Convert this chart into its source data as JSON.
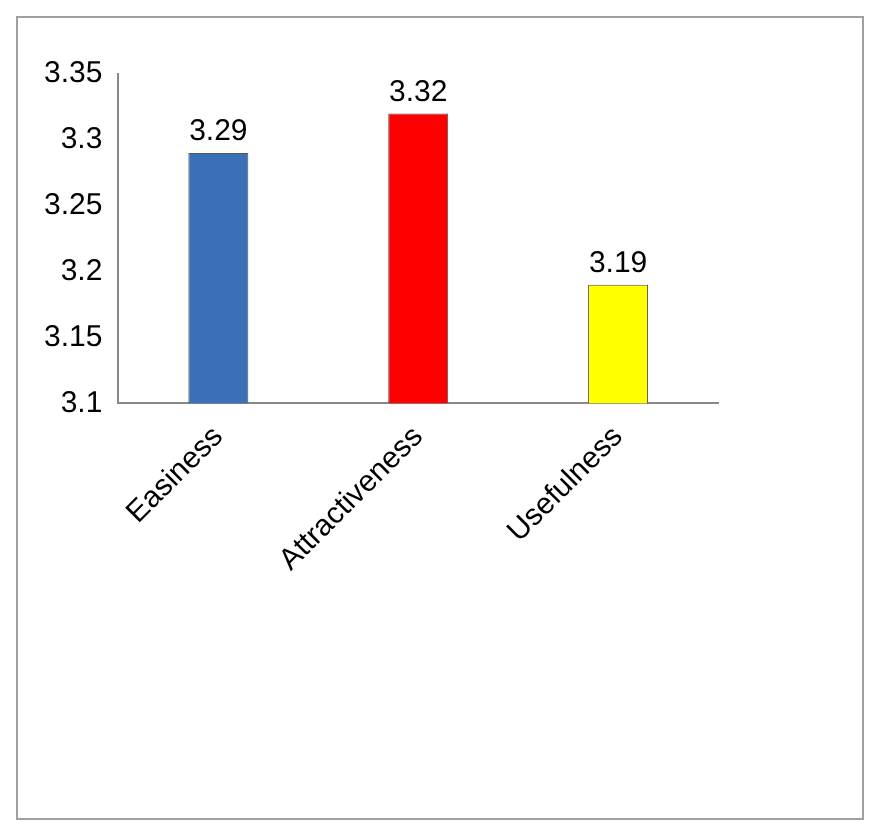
{
  "chart_data": {
    "type": "bar",
    "categories": [
      "Easiness",
      "Attractiveness",
      "Usefulness"
    ],
    "values": [
      3.29,
      3.32,
      3.19
    ],
    "colors": [
      "#3b70b8",
      "#ff0000",
      "#ffff00"
    ],
    "ylim": [
      3.1,
      3.35
    ],
    "yticks": [
      3.1,
      3.15,
      3.2,
      3.25,
      3.3,
      3.35
    ],
    "grid": false,
    "data_labels": true
  }
}
